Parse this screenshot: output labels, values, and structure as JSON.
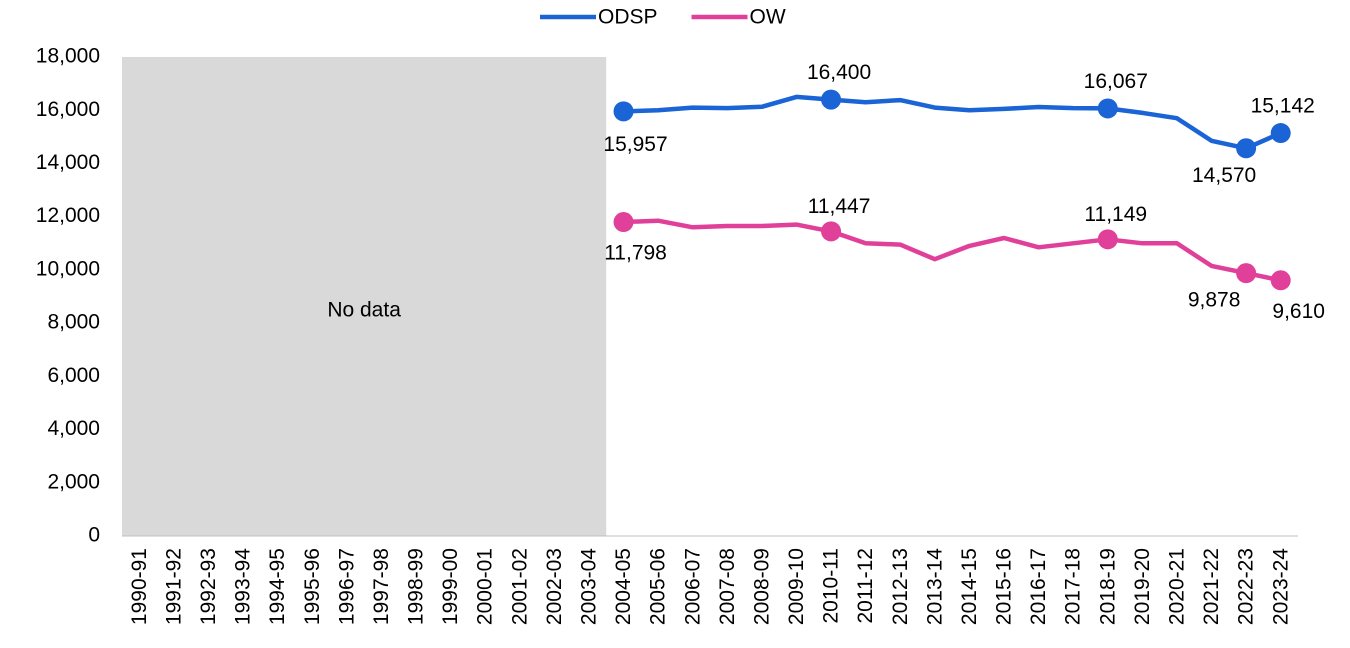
{
  "chart_data": {
    "type": "line",
    "categories": [
      "1990-91",
      "1991-92",
      "1992-93",
      "1993-94",
      "1994-95",
      "1995-96",
      "1996-97",
      "1997-98",
      "1998-99",
      "1999-00",
      "2000-01",
      "2001-02",
      "2002-03",
      "2003-04",
      "2004-05",
      "2005-06",
      "2006-07",
      "2007-08",
      "2008-09",
      "2009-10",
      "2010-11",
      "2011-12",
      "2012-13",
      "2013-14",
      "2014-15",
      "2015-16",
      "2016-17",
      "2017-18",
      "2018-19",
      "2019-20",
      "2020-21",
      "2021-22",
      "2022-23",
      "2023-24"
    ],
    "series": [
      {
        "name": "ODSP",
        "color": "#1a64d6",
        "values": [
          null,
          null,
          null,
          null,
          null,
          null,
          null,
          null,
          null,
          null,
          null,
          null,
          null,
          null,
          15957,
          16000,
          16100,
          16080,
          16130,
          16500,
          16400,
          16300,
          16380,
          16100,
          16000,
          16050,
          16120,
          16080,
          16067,
          15900,
          15700,
          14850,
          14570,
          15142
        ],
        "value_labels": [
          null,
          null,
          null,
          null,
          null,
          null,
          null,
          null,
          null,
          null,
          null,
          null,
          null,
          null,
          "15,957",
          null,
          null,
          null,
          null,
          null,
          "16,400",
          null,
          null,
          null,
          null,
          null,
          null,
          null,
          "16,067",
          null,
          null,
          null,
          "14,570",
          "15,142"
        ]
      },
      {
        "name": "OW",
        "color": "#e0409a",
        "values": [
          null,
          null,
          null,
          null,
          null,
          null,
          null,
          null,
          null,
          null,
          null,
          null,
          null,
          null,
          11798,
          11850,
          11600,
          11650,
          11650,
          11700,
          11447,
          11000,
          10950,
          10400,
          10900,
          11200,
          10850,
          11000,
          11149,
          11000,
          11000,
          10150,
          9878,
          9610
        ],
        "value_labels": [
          null,
          null,
          null,
          null,
          null,
          null,
          null,
          null,
          null,
          null,
          null,
          null,
          null,
          null,
          "11,798",
          null,
          null,
          null,
          null,
          null,
          "11,447",
          null,
          null,
          null,
          null,
          null,
          null,
          null,
          "11,149",
          null,
          null,
          null,
          "9,878",
          "9,610"
        ]
      }
    ],
    "annotations": [
      {
        "text": "No data"
      }
    ],
    "ylim": [
      0,
      18000
    ],
    "yticks": [
      0,
      {
        "value": 2000,
        "label": "2,000"
      },
      {
        "value": 4000,
        "label": "4,000"
      },
      {
        "value": 6000,
        "label": "6,000"
      },
      {
        "value": 8000,
        "label": "8,000"
      },
      {
        "value": 10000,
        "label": "10,000"
      },
      {
        "value": 12000,
        "label": "12,000"
      },
      {
        "value": 14000,
        "label": "14,000"
      },
      {
        "value": 16000,
        "label": "16,000"
      },
      {
        "value": 18000,
        "label": "18,000"
      }
    ],
    "legend": "top",
    "grid": false
  }
}
